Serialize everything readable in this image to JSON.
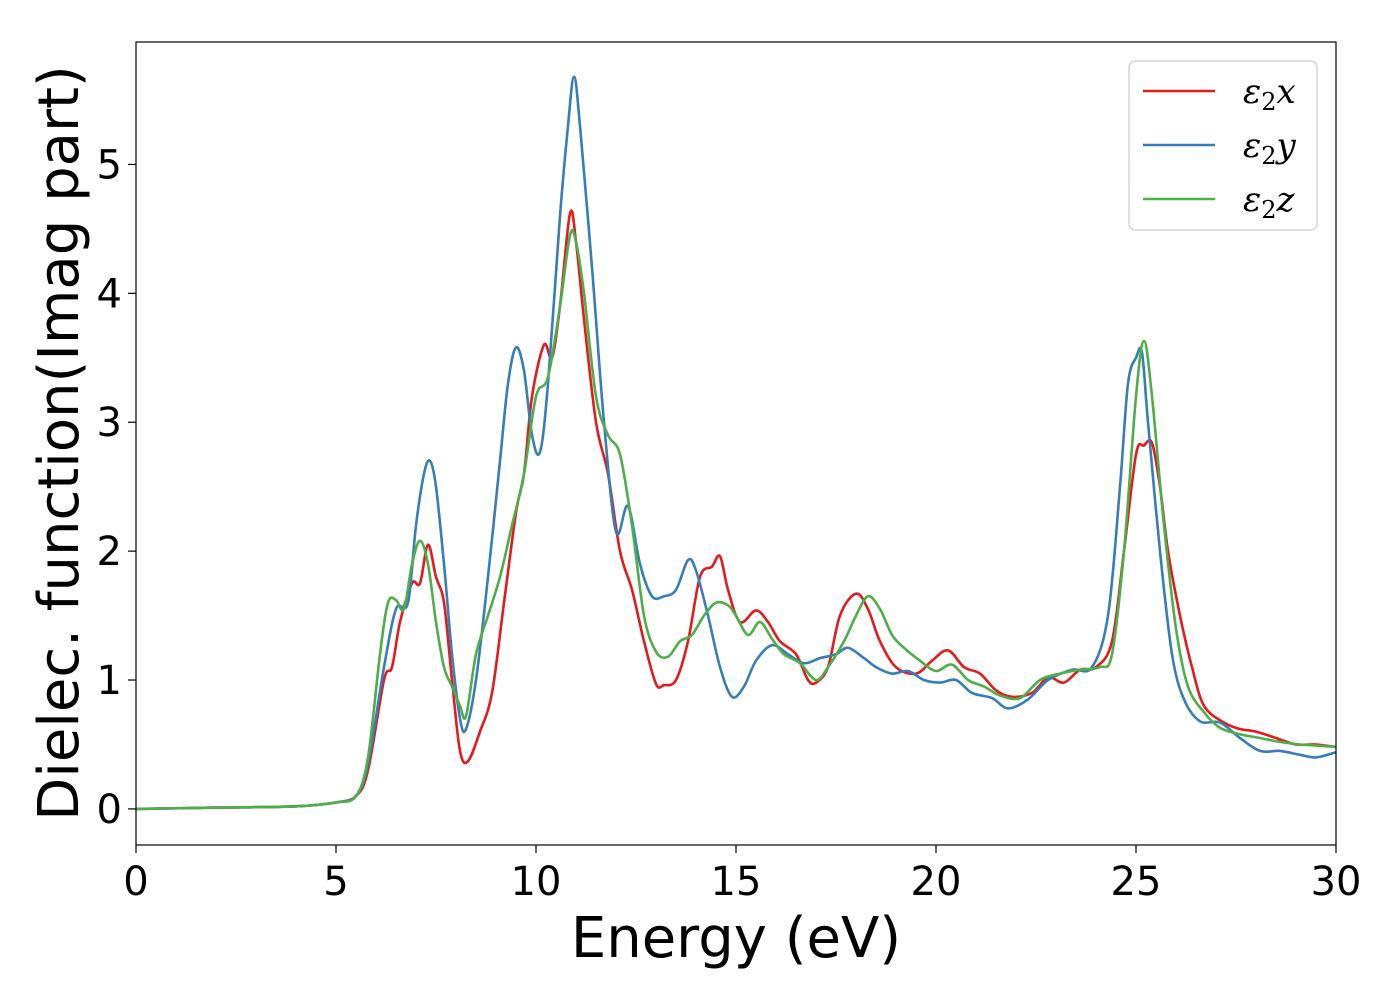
{
  "chart_data": {
    "type": "line",
    "xlabel": "Energy (eV)",
    "ylabel": "Dielec. function(Imag part)",
    "xlim": [
      0,
      30
    ],
    "ylim": [
      -0.28,
      5.95
    ],
    "xticks": [
      0,
      5,
      10,
      15,
      20,
      25,
      30
    ],
    "yticks": [
      0,
      1,
      2,
      3,
      4,
      5
    ],
    "grid": false,
    "legend": "top-right",
    "series": [
      {
        "name": "ε₂x",
        "legend_base": "ε",
        "legend_sub": "2",
        "legend_comp": "x",
        "color": "#e41a1c",
        "points": [
          [
            0,
            0
          ],
          [
            2,
            0.01
          ],
          [
            4,
            0.02
          ],
          [
            5,
            0.05
          ],
          [
            5.5,
            0.1
          ],
          [
            5.8,
            0.3
          ],
          [
            6.2,
            1.0
          ],
          [
            6.4,
            1.1
          ],
          [
            6.6,
            1.45
          ],
          [
            6.9,
            1.75
          ],
          [
            7.1,
            1.75
          ],
          [
            7.3,
            2.05
          ],
          [
            7.5,
            1.8
          ],
          [
            7.7,
            1.6
          ],
          [
            7.9,
            1.0
          ],
          [
            8.1,
            0.45
          ],
          [
            8.3,
            0.37
          ],
          [
            8.6,
            0.6
          ],
          [
            8.9,
            0.9
          ],
          [
            9.2,
            1.6
          ],
          [
            9.5,
            2.3
          ],
          [
            9.7,
            2.6
          ],
          [
            9.9,
            3.2
          ],
          [
            10.2,
            3.6
          ],
          [
            10.4,
            3.5
          ],
          [
            10.6,
            3.9
          ],
          [
            10.85,
            4.62
          ],
          [
            11.0,
            4.4
          ],
          [
            11.2,
            3.8
          ],
          [
            11.5,
            3.0
          ],
          [
            11.8,
            2.6
          ],
          [
            12.1,
            2.0
          ],
          [
            12.4,
            1.7
          ],
          [
            12.7,
            1.3
          ],
          [
            13.0,
            0.97
          ],
          [
            13.2,
            0.96
          ],
          [
            13.5,
            1.0
          ],
          [
            13.8,
            1.3
          ],
          [
            14.1,
            1.8
          ],
          [
            14.4,
            1.88
          ],
          [
            14.6,
            1.96
          ],
          [
            14.8,
            1.7
          ],
          [
            15.1,
            1.45
          ],
          [
            15.5,
            1.54
          ],
          [
            15.8,
            1.45
          ],
          [
            16.1,
            1.3
          ],
          [
            16.5,
            1.2
          ],
          [
            16.8,
            1.0
          ],
          [
            17.0,
            0.98
          ],
          [
            17.3,
            1.1
          ],
          [
            17.6,
            1.5
          ],
          [
            18.0,
            1.67
          ],
          [
            18.3,
            1.55
          ],
          [
            18.6,
            1.3
          ],
          [
            19.0,
            1.1
          ],
          [
            19.5,
            1.05
          ],
          [
            19.9,
            1.15
          ],
          [
            20.3,
            1.23
          ],
          [
            20.7,
            1.1
          ],
          [
            21.1,
            1.05
          ],
          [
            21.5,
            0.92
          ],
          [
            21.9,
            0.87
          ],
          [
            22.4,
            0.9
          ],
          [
            22.8,
            1.02
          ],
          [
            23.2,
            0.98
          ],
          [
            23.6,
            1.08
          ],
          [
            24.0,
            1.1
          ],
          [
            24.4,
            1.3
          ],
          [
            24.7,
            2.0
          ],
          [
            25.0,
            2.75
          ],
          [
            25.2,
            2.82
          ],
          [
            25.4,
            2.84
          ],
          [
            25.6,
            2.5
          ],
          [
            25.8,
            2.0
          ],
          [
            26.1,
            1.5
          ],
          [
            26.4,
            1.1
          ],
          [
            26.7,
            0.8
          ],
          [
            27.2,
            0.67
          ],
          [
            27.6,
            0.62
          ],
          [
            28.0,
            0.6
          ],
          [
            28.5,
            0.55
          ],
          [
            29.0,
            0.5
          ],
          [
            29.5,
            0.5
          ],
          [
            30.0,
            0.48
          ]
        ]
      },
      {
        "name": "ε₂y",
        "legend_base": "ε",
        "legend_sub": "2",
        "legend_comp": "y",
        "color": "#377eb8",
        "points": [
          [
            0,
            0
          ],
          [
            2,
            0.01
          ],
          [
            4,
            0.02
          ],
          [
            5,
            0.05
          ],
          [
            5.5,
            0.1
          ],
          [
            5.8,
            0.35
          ],
          [
            6.2,
            1.1
          ],
          [
            6.5,
            1.55
          ],
          [
            6.8,
            1.6
          ],
          [
            7.0,
            2.2
          ],
          [
            7.2,
            2.6
          ],
          [
            7.35,
            2.7
          ],
          [
            7.5,
            2.5
          ],
          [
            7.7,
            1.9
          ],
          [
            7.9,
            1.2
          ],
          [
            8.1,
            0.7
          ],
          [
            8.25,
            0.62
          ],
          [
            8.5,
            1.0
          ],
          [
            8.8,
            1.8
          ],
          [
            9.1,
            2.7
          ],
          [
            9.3,
            3.3
          ],
          [
            9.5,
            3.58
          ],
          [
            9.7,
            3.4
          ],
          [
            9.9,
            2.9
          ],
          [
            10.1,
            2.77
          ],
          [
            10.3,
            3.3
          ],
          [
            10.6,
            4.6
          ],
          [
            10.8,
            5.3
          ],
          [
            10.95,
            5.68
          ],
          [
            11.1,
            5.3
          ],
          [
            11.4,
            4.2
          ],
          [
            11.7,
            3.0
          ],
          [
            12.0,
            2.15
          ],
          [
            12.3,
            2.35
          ],
          [
            12.6,
            1.9
          ],
          [
            12.9,
            1.65
          ],
          [
            13.2,
            1.65
          ],
          [
            13.5,
            1.7
          ],
          [
            13.8,
            1.93
          ],
          [
            14.0,
            1.85
          ],
          [
            14.3,
            1.5
          ],
          [
            14.6,
            1.1
          ],
          [
            14.9,
            0.87
          ],
          [
            15.2,
            0.95
          ],
          [
            15.5,
            1.15
          ],
          [
            15.9,
            1.27
          ],
          [
            16.3,
            1.2
          ],
          [
            16.7,
            1.13
          ],
          [
            17.1,
            1.17
          ],
          [
            17.5,
            1.2
          ],
          [
            17.8,
            1.25
          ],
          [
            18.2,
            1.17
          ],
          [
            18.5,
            1.1
          ],
          [
            18.9,
            1.05
          ],
          [
            19.3,
            1.07
          ],
          [
            19.7,
            1.0
          ],
          [
            20.1,
            0.98
          ],
          [
            20.5,
            1.0
          ],
          [
            20.9,
            0.9
          ],
          [
            21.4,
            0.86
          ],
          [
            21.8,
            0.78
          ],
          [
            22.3,
            0.85
          ],
          [
            22.8,
            1.0
          ],
          [
            23.4,
            1.08
          ],
          [
            23.9,
            1.1
          ],
          [
            24.3,
            1.5
          ],
          [
            24.6,
            2.5
          ],
          [
            24.8,
            3.3
          ],
          [
            25.0,
            3.5
          ],
          [
            25.15,
            3.54
          ],
          [
            25.3,
            3.0
          ],
          [
            25.6,
            2.0
          ],
          [
            25.9,
            1.2
          ],
          [
            26.2,
            0.85
          ],
          [
            26.6,
            0.68
          ],
          [
            27.1,
            0.67
          ],
          [
            27.6,
            0.55
          ],
          [
            28.1,
            0.45
          ],
          [
            28.6,
            0.45
          ],
          [
            29.1,
            0.42
          ],
          [
            29.5,
            0.4
          ],
          [
            30.0,
            0.44
          ]
        ]
      },
      {
        "name": "ε₂z",
        "legend_base": "ε",
        "legend_sub": "2",
        "legend_comp": "z",
        "color": "#4daf4a",
        "points": [
          [
            0,
            0
          ],
          [
            2,
            0.01
          ],
          [
            4,
            0.02
          ],
          [
            5,
            0.05
          ],
          [
            5.5,
            0.1
          ],
          [
            5.8,
            0.4
          ],
          [
            6.1,
            1.2
          ],
          [
            6.3,
            1.6
          ],
          [
            6.5,
            1.62
          ],
          [
            6.7,
            1.55
          ],
          [
            6.9,
            1.9
          ],
          [
            7.1,
            2.08
          ],
          [
            7.3,
            1.9
          ],
          [
            7.5,
            1.45
          ],
          [
            7.7,
            1.1
          ],
          [
            7.9,
            0.95
          ],
          [
            8.1,
            0.8
          ],
          [
            8.25,
            0.72
          ],
          [
            8.5,
            1.2
          ],
          [
            8.8,
            1.5
          ],
          [
            9.1,
            1.8
          ],
          [
            9.4,
            2.2
          ],
          [
            9.7,
            2.6
          ],
          [
            10.0,
            3.2
          ],
          [
            10.3,
            3.35
          ],
          [
            10.6,
            3.9
          ],
          [
            10.85,
            4.45
          ],
          [
            11.0,
            4.4
          ],
          [
            11.2,
            4.0
          ],
          [
            11.5,
            3.2
          ],
          [
            11.8,
            2.9
          ],
          [
            12.1,
            2.75
          ],
          [
            12.4,
            2.2
          ],
          [
            12.7,
            1.5
          ],
          [
            13.0,
            1.22
          ],
          [
            13.3,
            1.18
          ],
          [
            13.6,
            1.3
          ],
          [
            13.9,
            1.35
          ],
          [
            14.2,
            1.5
          ],
          [
            14.5,
            1.6
          ],
          [
            14.8,
            1.58
          ],
          [
            15.0,
            1.5
          ],
          [
            15.3,
            1.35
          ],
          [
            15.6,
            1.45
          ],
          [
            15.9,
            1.32
          ],
          [
            16.2,
            1.2
          ],
          [
            16.6,
            1.13
          ],
          [
            17.0,
            1.0
          ],
          [
            17.3,
            1.1
          ],
          [
            17.7,
            1.3
          ],
          [
            18.0,
            1.5
          ],
          [
            18.3,
            1.65
          ],
          [
            18.6,
            1.55
          ],
          [
            18.9,
            1.35
          ],
          [
            19.2,
            1.25
          ],
          [
            19.6,
            1.15
          ],
          [
            20.0,
            1.07
          ],
          [
            20.4,
            1.12
          ],
          [
            20.8,
            1.0
          ],
          [
            21.2,
            0.95
          ],
          [
            21.6,
            0.88
          ],
          [
            22.1,
            0.86
          ],
          [
            22.6,
            1.0
          ],
          [
            23.1,
            1.05
          ],
          [
            23.6,
            1.08
          ],
          [
            24.1,
            1.1
          ],
          [
            24.4,
            1.2
          ],
          [
            24.7,
            2.0
          ],
          [
            25.0,
            3.2
          ],
          [
            25.2,
            3.63
          ],
          [
            25.4,
            3.2
          ],
          [
            25.7,
            2.2
          ],
          [
            26.0,
            1.4
          ],
          [
            26.3,
            0.95
          ],
          [
            26.7,
            0.75
          ],
          [
            27.1,
            0.63
          ],
          [
            27.6,
            0.58
          ],
          [
            28.1,
            0.55
          ],
          [
            28.6,
            0.52
          ],
          [
            29.1,
            0.5
          ],
          [
            29.6,
            0.49
          ],
          [
            30.0,
            0.48
          ]
        ]
      }
    ]
  }
}
